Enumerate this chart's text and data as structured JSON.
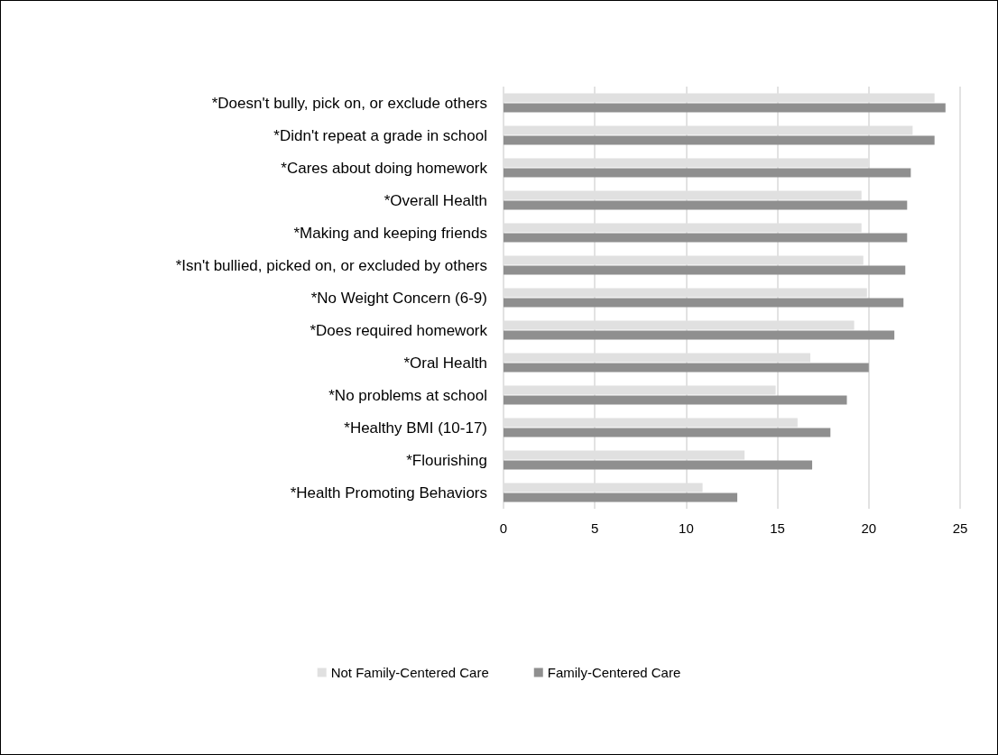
{
  "chart_data": {
    "type": "bar",
    "orientation": "horizontal",
    "categories": [
      "*Doesn't bully, pick on, or exclude others",
      "*Didn't repeat a grade in school",
      "*Cares about doing homework",
      "*Overall Health",
      "*Making and keeping friends",
      "*Isn't bullied, picked on, or excluded by others",
      "*No Weight Concern (6-9)",
      "*Does required homework",
      "*Oral Health",
      "*No problems at school",
      "*Healthy BMI (10-17)",
      "*Flourishing",
      "*Health Promoting Behaviors"
    ],
    "series": [
      {
        "name": "Not Family-Centered Care",
        "color": "#e0e0e0",
        "values": [
          23.6,
          22.4,
          20.0,
          19.6,
          19.6,
          19.7,
          19.9,
          19.2,
          16.8,
          14.9,
          16.1,
          13.2,
          10.9
        ]
      },
      {
        "name": "Family-Centered Care",
        "color": "#8f8f8f",
        "values": [
          24.2,
          23.6,
          22.3,
          22.1,
          22.1,
          22.0,
          21.9,
          21.4,
          20.0,
          18.8,
          17.9,
          16.9,
          12.8
        ]
      }
    ],
    "xlim": [
      0,
      25
    ],
    "xticks": [
      0,
      5,
      10,
      15,
      20,
      25
    ],
    "grid": "x",
    "legend": "bottom"
  }
}
